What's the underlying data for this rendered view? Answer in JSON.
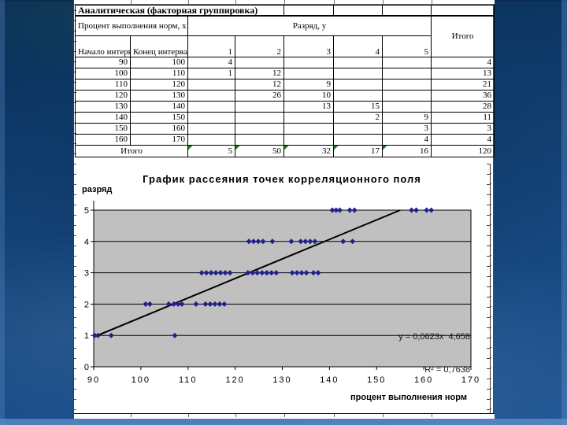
{
  "table": {
    "title": "Аналитическая (факторная группировка)",
    "factor_header": "Процент выполнения норм, x",
    "grade_header": "Разряд, y",
    "total_header": "Итого",
    "col_start": "Начало интервала",
    "col_end": "Конец интервала",
    "grade_labels": [
      "1",
      "2",
      "3",
      "4",
      "5"
    ],
    "rows": [
      {
        "start": "90",
        "end": "100",
        "grades": [
          "4",
          "",
          "",
          "",
          ""
        ],
        "total": "4"
      },
      {
        "start": "100",
        "end": "110",
        "grades": [
          "1",
          "12",
          "",
          "",
          ""
        ],
        "total": "13"
      },
      {
        "start": "110",
        "end": "120",
        "grades": [
          "",
          "12",
          "9",
          "",
          ""
        ],
        "total": "21"
      },
      {
        "start": "120",
        "end": "130",
        "grades": [
          "",
          "26",
          "10",
          "",
          ""
        ],
        "total": "36"
      },
      {
        "start": "130",
        "end": "140",
        "grades": [
          "",
          "",
          "13",
          "15",
          ""
        ],
        "total": "28"
      },
      {
        "start": "140",
        "end": "150",
        "grades": [
          "",
          "",
          "",
          "2",
          "9"
        ],
        "total": "11"
      },
      {
        "start": "150",
        "end": "160",
        "grades": [
          "",
          "",
          "",
          "",
          "3"
        ],
        "total": "3"
      },
      {
        "start": "160",
        "end": "170",
        "grades": [
          "",
          "",
          "",
          "",
          "4"
        ],
        "total": "4"
      }
    ],
    "total_row": {
      "label": "Итого",
      "values": [
        "5",
        "50",
        "32",
        "17",
        "16"
      ],
      "total": "120"
    },
    "flag_color": "#1e7d1e"
  },
  "chart_data": {
    "type": "scatter",
    "title": "График рассеяния точек корреляционного поля",
    "ylabel": "разряд",
    "xlabel": "процент выполнения норм",
    "xlim": [
      90,
      170
    ],
    "ylim": [
      0,
      5
    ],
    "xticks": [
      90,
      100,
      110,
      120,
      130,
      140,
      150,
      160,
      170
    ],
    "yticks": [
      0,
      1,
      2,
      3,
      4,
      5
    ],
    "grid": true,
    "legend": "none",
    "plot_bg": "#c0c0c0",
    "marker_color": "#20208a",
    "trendline": {
      "equation": "y = 0,0623x  4,658",
      "r2": "R² = 0,7638",
      "x_start": 90,
      "y_start": 0.95,
      "x_end": 155,
      "y_end": 5
    },
    "series": [
      {
        "name": "correlation-field-points",
        "points": [
          [
            90.2,
            1
          ],
          [
            90.9,
            1
          ],
          [
            93.7,
            1
          ],
          [
            107.2,
            1
          ],
          [
            101.0,
            2
          ],
          [
            101.9,
            2
          ],
          [
            105.9,
            2
          ],
          [
            107.0,
            2
          ],
          [
            107.9,
            2
          ],
          [
            108.7,
            2
          ],
          [
            111.7,
            2
          ],
          [
            113.7,
            2
          ],
          [
            114.7,
            2
          ],
          [
            115.7,
            2
          ],
          [
            116.7,
            2
          ],
          [
            117.7,
            2
          ],
          [
            112.9,
            3
          ],
          [
            113.9,
            3
          ],
          [
            114.9,
            3
          ],
          [
            115.9,
            3
          ],
          [
            116.9,
            3
          ],
          [
            117.9,
            3
          ],
          [
            118.9,
            3
          ],
          [
            122.7,
            3
          ],
          [
            123.7,
            3
          ],
          [
            124.7,
            3
          ],
          [
            125.7,
            3
          ],
          [
            126.7,
            3
          ],
          [
            127.7,
            3
          ],
          [
            128.7,
            3
          ],
          [
            132.1,
            3
          ],
          [
            133.1,
            3
          ],
          [
            134.1,
            3
          ],
          [
            135.1,
            3
          ],
          [
            136.6,
            3
          ],
          [
            137.6,
            3
          ],
          [
            122.9,
            4
          ],
          [
            123.9,
            4
          ],
          [
            124.9,
            4
          ],
          [
            125.9,
            4
          ],
          [
            127.9,
            4
          ],
          [
            131.9,
            4
          ],
          [
            133.9,
            4
          ],
          [
            134.9,
            4
          ],
          [
            135.9,
            4
          ],
          [
            136.9,
            4
          ],
          [
            142.9,
            4
          ],
          [
            144.9,
            4
          ],
          [
            140.6,
            5
          ],
          [
            141.4,
            5
          ],
          [
            142.2,
            5
          ],
          [
            144.3,
            5
          ],
          [
            145.3,
            5
          ],
          [
            157.4,
            5
          ],
          [
            158.4,
            5
          ],
          [
            160.6,
            5
          ],
          [
            161.6,
            5
          ]
        ]
      }
    ]
  }
}
